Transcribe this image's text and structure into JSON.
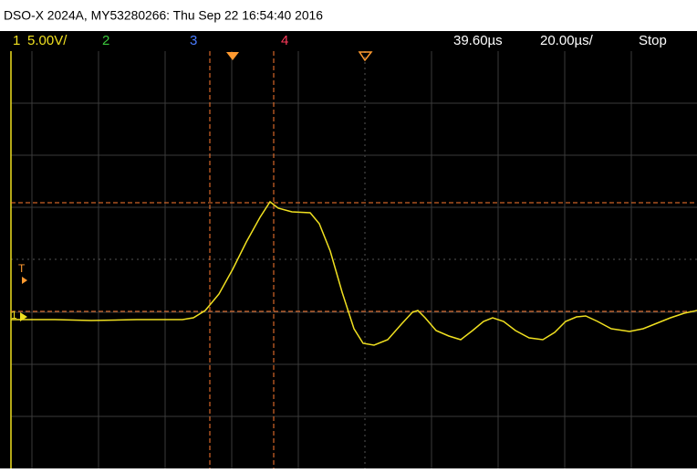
{
  "header": {
    "title": "DSO-X 2024A, MY53280266: Thu Sep 22 16:54:40 2016"
  },
  "toolbar": {
    "ch1": "1",
    "ch1_scale": "5.00V/",
    "ch2": "2",
    "ch3": "3",
    "ch4": "4",
    "delay": "39.60µs",
    "timebase": "20.00µs/",
    "status": "Stop"
  },
  "markers": {
    "trigger": "T",
    "ground": "1"
  }
}
